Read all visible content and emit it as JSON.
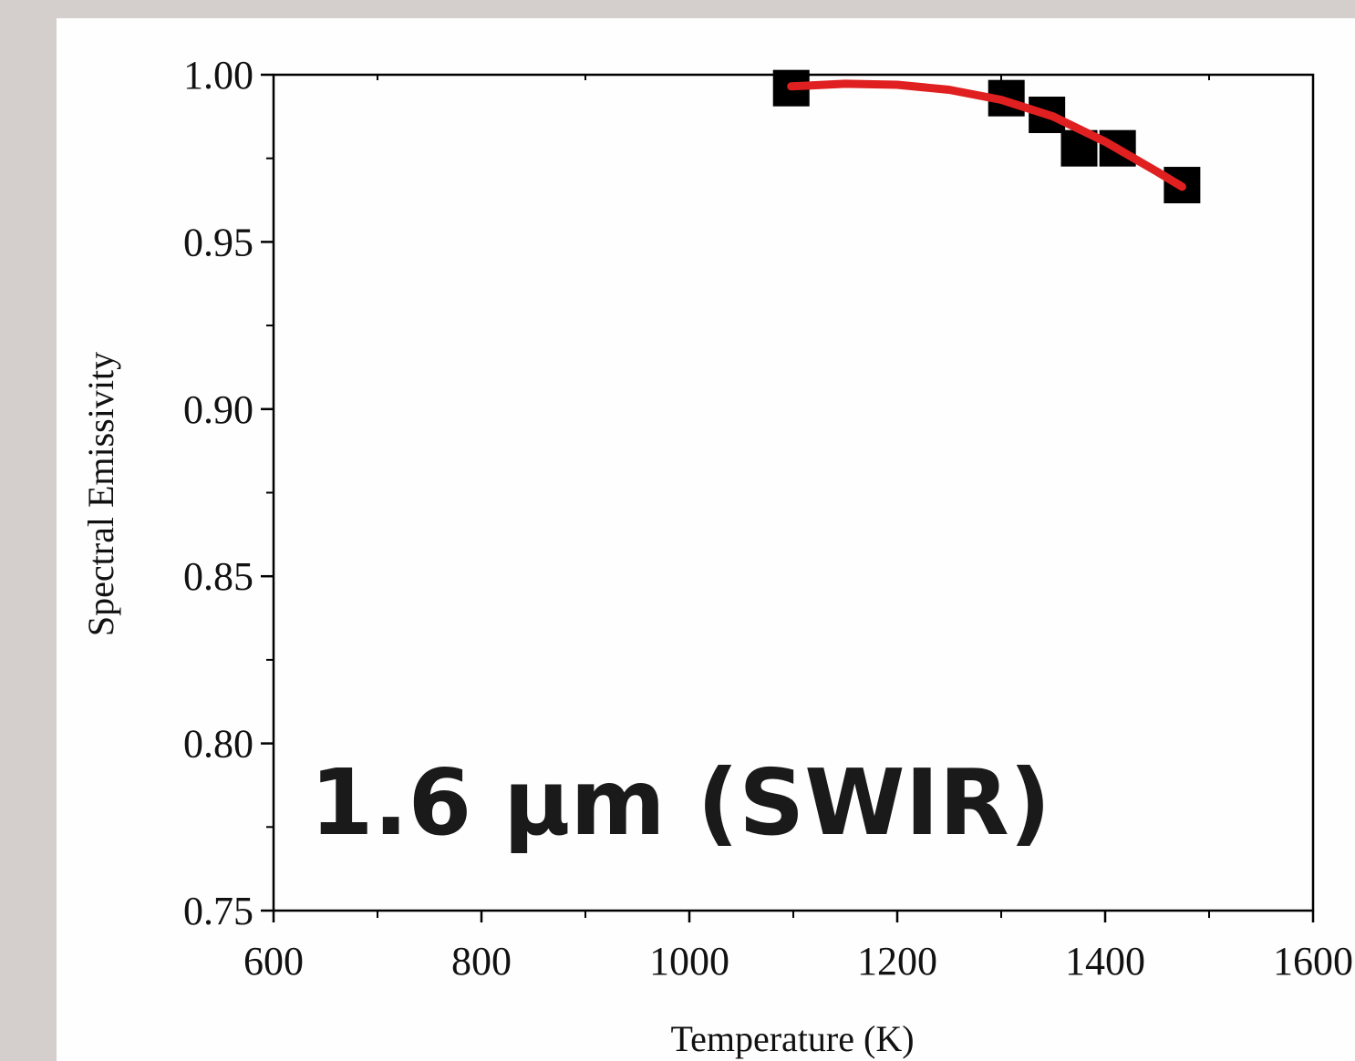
{
  "chart_data": {
    "type": "scatter",
    "xlabel": "Temperature (K)",
    "ylabel": "Spectral Emissivity",
    "xlim": [
      600,
      1600
    ],
    "ylim": [
      0.75,
      1.0
    ],
    "x_ticks": [
      600,
      800,
      1000,
      1200,
      1400,
      1600
    ],
    "y_ticks": [
      0.75,
      0.8,
      0.85,
      0.9,
      0.95,
      1.0
    ],
    "x_tick_labels": [
      "600",
      "800",
      "1000",
      "1200",
      "1400",
      "1600"
    ],
    "y_tick_labels": [
      "0.75",
      "0.80",
      "0.85",
      "0.90",
      "0.95",
      "1.00"
    ],
    "grid": false,
    "annotation": "1.6 μm (SWIR)",
    "series": [
      {
        "type": "scatter",
        "marker": "square",
        "color": "#000000",
        "x": [
          1098,
          1305,
          1344,
          1375,
          1412,
          1474
        ],
        "y": [
          0.996,
          0.993,
          0.988,
          0.978,
          0.978,
          0.967
        ]
      },
      {
        "type": "line",
        "color": "#e02020",
        "x": [
          1098,
          1150,
          1200,
          1250,
          1300,
          1350,
          1400,
          1450,
          1474
        ],
        "y": [
          0.9965,
          0.9973,
          0.997,
          0.9955,
          0.9925,
          0.9875,
          0.98,
          0.971,
          0.9665
        ]
      }
    ]
  }
}
